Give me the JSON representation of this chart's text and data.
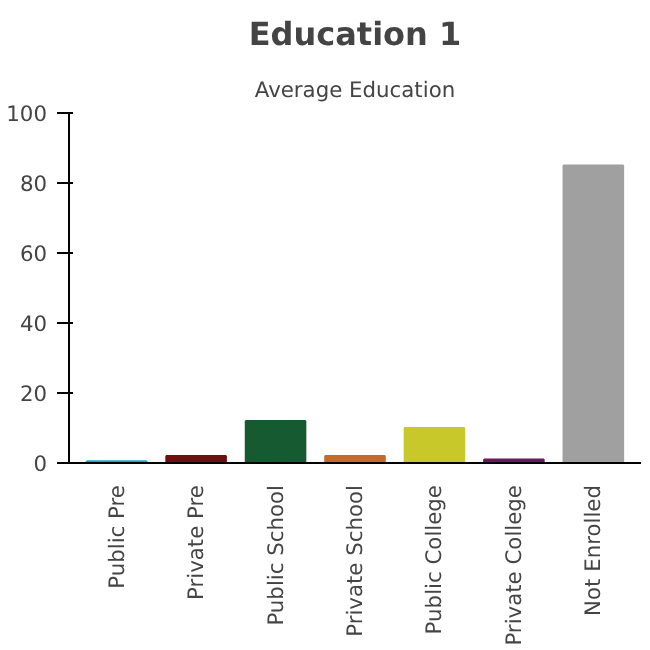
{
  "chart_data": {
    "type": "bar",
    "title": "Education 1",
    "subtitle": "Average Education",
    "categories": [
      "Public Pre",
      "Private Pre",
      "Public School",
      "Private School",
      "Public College",
      "Private College",
      "Not Enrolled"
    ],
    "values": [
      0.5,
      2,
      12,
      2,
      10,
      1,
      85
    ],
    "colors": [
      "#22a6c0",
      "#6b0f0f",
      "#155a30",
      "#c8692a",
      "#c8c82a",
      "#6b1a5c",
      "#a0a0a0"
    ],
    "ylim": [
      0,
      100
    ],
    "yticks": [
      0,
      20,
      40,
      60,
      80,
      100
    ],
    "grid": false
  }
}
